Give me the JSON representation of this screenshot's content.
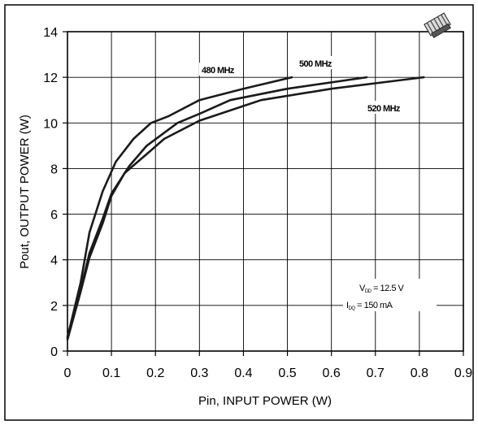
{
  "chart_data": {
    "type": "line",
    "title": "",
    "xlabel": "Pin, INPUT POWER (W)",
    "ylabel": "Pout, OUTPUT POWER (W)",
    "xlim": [
      0,
      0.9
    ],
    "ylim": [
      0,
      14
    ],
    "x_ticks": [
      "0",
      "0.1",
      "0.2",
      "0.3",
      "0.4",
      "0.5",
      "0.6",
      "0.7",
      "0.8",
      "0.9"
    ],
    "y_ticks": [
      "0",
      "2",
      "4",
      "6",
      "8",
      "10",
      "12",
      "14"
    ],
    "grid": true,
    "series": [
      {
        "name": "480 MHz",
        "points": [
          [
            0.0,
            0.6
          ],
          [
            0.03,
            3.0
          ],
          [
            0.05,
            5.2
          ],
          [
            0.08,
            7.0
          ],
          [
            0.11,
            8.3
          ],
          [
            0.15,
            9.3
          ],
          [
            0.19,
            10.0
          ],
          [
            0.23,
            10.3
          ],
          [
            0.3,
            11.0
          ],
          [
            0.4,
            11.5
          ],
          [
            0.51,
            12.0
          ]
        ]
      },
      {
        "name": "500 MHz",
        "points": [
          [
            0.0,
            0.6
          ],
          [
            0.03,
            2.7
          ],
          [
            0.05,
            4.3
          ],
          [
            0.08,
            5.8
          ],
          [
            0.1,
            6.9
          ],
          [
            0.14,
            8.1
          ],
          [
            0.18,
            9.0
          ],
          [
            0.25,
            10.0
          ],
          [
            0.3,
            10.4
          ],
          [
            0.37,
            11.0
          ],
          [
            0.5,
            11.5
          ],
          [
            0.68,
            12.0
          ]
        ]
      },
      {
        "name": "520 MHz",
        "points": [
          [
            0.0,
            0.5
          ],
          [
            0.03,
            2.6
          ],
          [
            0.05,
            4.1
          ],
          [
            0.08,
            5.6
          ],
          [
            0.1,
            6.8
          ],
          [
            0.13,
            7.8
          ],
          [
            0.19,
            8.8
          ],
          [
            0.22,
            9.3
          ],
          [
            0.3,
            10.1
          ],
          [
            0.44,
            11.0
          ],
          [
            0.6,
            11.5
          ],
          [
            0.81,
            12.0
          ]
        ]
      }
    ],
    "annotations": {
      "vdd": {
        "main": "V",
        "sub": "DD",
        "rest": " = 12.5 V"
      },
      "idq": {
        "main": "I",
        "sub": "DQ",
        "rest": " = 150 mA"
      }
    }
  },
  "colors": {
    "line": "#1a1a1a",
    "grid": "#000000",
    "frame": "#000000"
  },
  "icons": {
    "corner": "package-icon"
  }
}
